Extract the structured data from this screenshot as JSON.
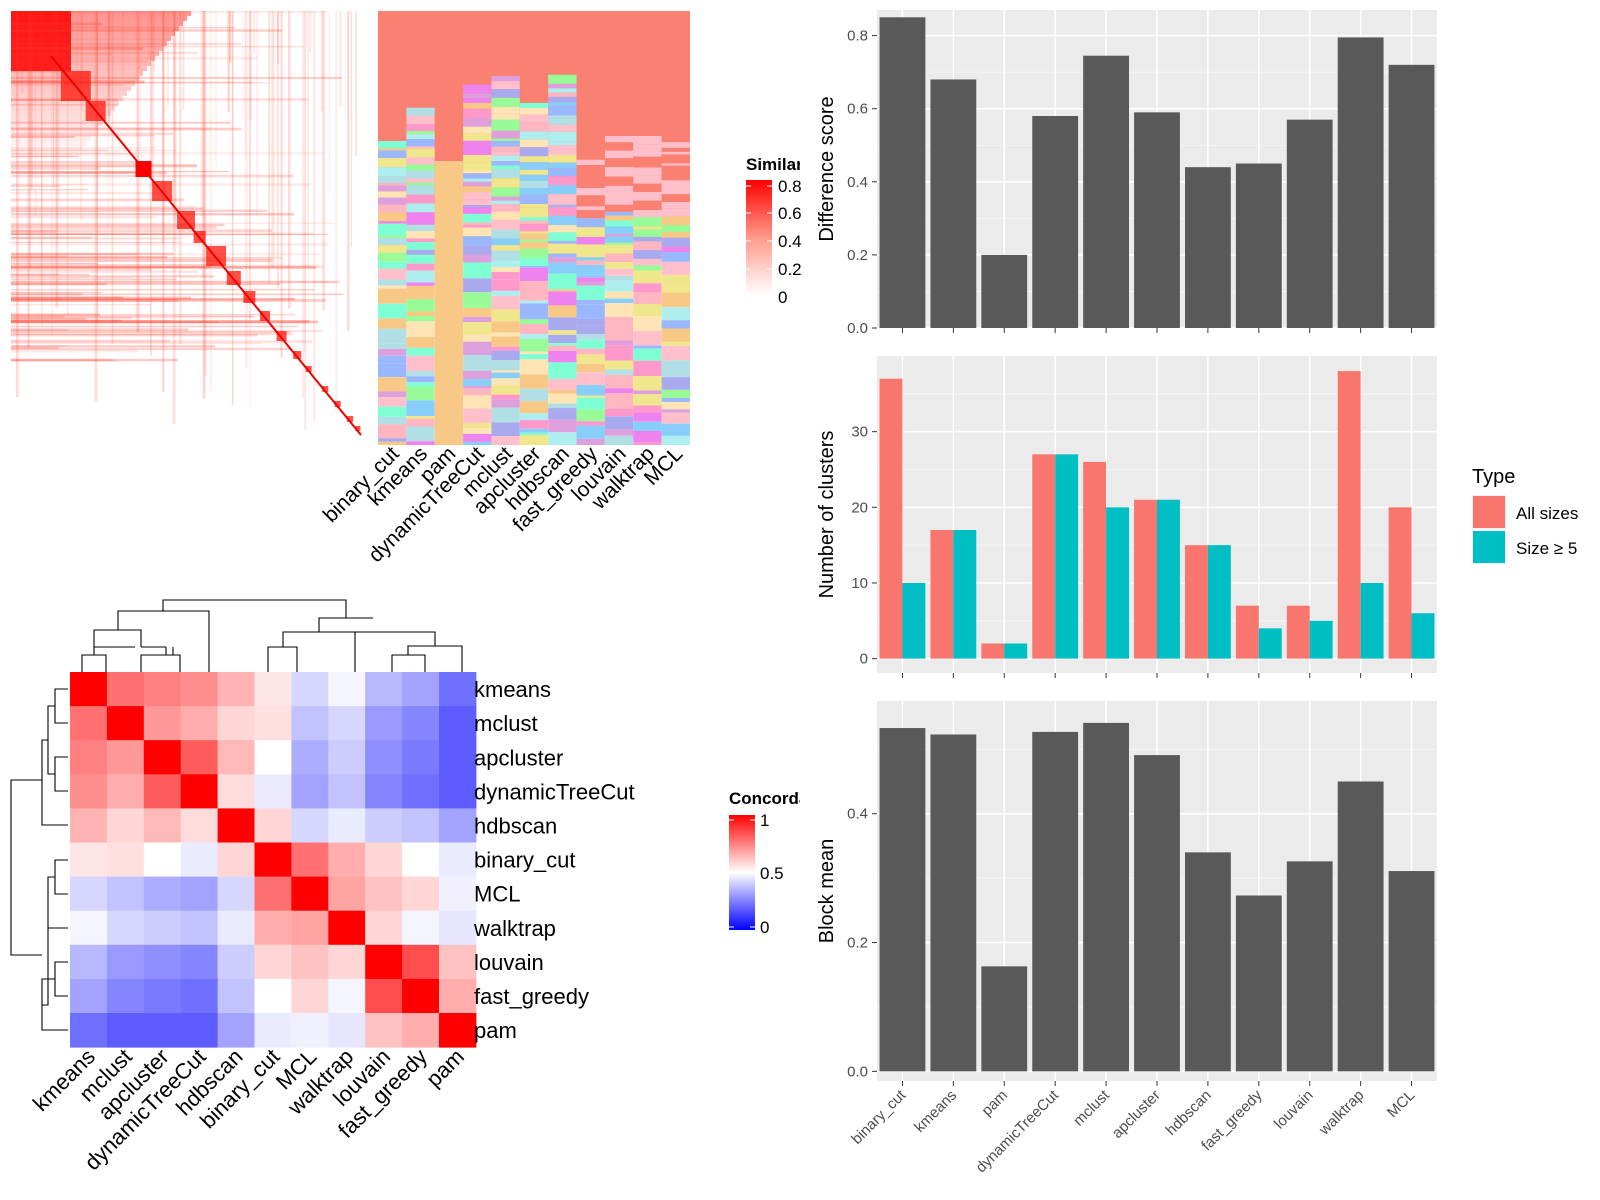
{
  "methods_cols": [
    "binary_cut",
    "kmeans",
    "pam",
    "dynamicTreeCut",
    "mclust",
    "apcluster",
    "hdbscan",
    "fast_greedy",
    "louvain",
    "walktrap",
    "MCL"
  ],
  "legend_top": {
    "title": "Similarity",
    "ticks": [
      "0.8",
      "0.6",
      "0.4",
      "0.2",
      "0"
    ]
  },
  "concordance": {
    "rows": [
      "kmeans",
      "mclust",
      "apcluster",
      "dynamicTreeCut",
      "hdbscan",
      "binary_cut",
      "MCL",
      "walktrap",
      "louvain",
      "fast_greedy",
      "pam"
    ],
    "matrix": [
      [
        1.0,
        0.78,
        0.75,
        0.72,
        0.65,
        0.55,
        0.42,
        0.48,
        0.36,
        0.32,
        0.22
      ],
      [
        0.78,
        1.0,
        0.7,
        0.66,
        0.58,
        0.56,
        0.38,
        0.42,
        0.3,
        0.26,
        0.18
      ],
      [
        0.75,
        0.7,
        1.0,
        0.82,
        0.64,
        0.5,
        0.34,
        0.4,
        0.28,
        0.24,
        0.18
      ],
      [
        0.72,
        0.66,
        0.82,
        1.0,
        0.57,
        0.46,
        0.32,
        0.38,
        0.26,
        0.22,
        0.18
      ],
      [
        0.65,
        0.58,
        0.64,
        0.57,
        1.0,
        0.58,
        0.42,
        0.46,
        0.4,
        0.38,
        0.32
      ],
      [
        0.55,
        0.56,
        0.5,
        0.46,
        0.58,
        1.0,
        0.78,
        0.66,
        0.58,
        0.5,
        0.46
      ],
      [
        0.42,
        0.38,
        0.34,
        0.32,
        0.42,
        0.78,
        1.0,
        0.68,
        0.62,
        0.58,
        0.47
      ],
      [
        0.48,
        0.42,
        0.4,
        0.38,
        0.46,
        0.66,
        0.68,
        1.0,
        0.58,
        0.48,
        0.45
      ],
      [
        0.36,
        0.3,
        0.28,
        0.26,
        0.4,
        0.58,
        0.62,
        0.58,
        1.0,
        0.85,
        0.62
      ],
      [
        0.32,
        0.26,
        0.24,
        0.22,
        0.38,
        0.5,
        0.58,
        0.48,
        0.85,
        1.0,
        0.66
      ],
      [
        0.22,
        0.18,
        0.18,
        0.18,
        0.32,
        0.46,
        0.47,
        0.45,
        0.62,
        0.66,
        1.0
      ]
    ]
  },
  "legend_mid": {
    "title": "Concordance",
    "ticks": [
      "1",
      "0.5",
      "0"
    ]
  },
  "chart_data": [
    {
      "type": "bar",
      "categories": [
        "binary_cut",
        "kmeans",
        "pam",
        "dynamicTreeCut",
        "mclust",
        "apcluster",
        "hdbscan",
        "fast_greedy",
        "louvain",
        "walktrap",
        "MCL"
      ],
      "values": [
        0.85,
        0.68,
        0.2,
        0.58,
        0.745,
        0.59,
        0.44,
        0.45,
        0.57,
        0.795,
        0.72
      ],
      "ylabel": "Difference score",
      "yticks": [
        "0.0",
        "0.2",
        "0.4",
        "0.6",
        "0.8"
      ],
      "ylim": [
        0,
        0.87
      ]
    },
    {
      "type": "bar",
      "categories": [
        "binary_cut",
        "kmeans",
        "pam",
        "dynamicTreeCut",
        "mclust",
        "apcluster",
        "hdbscan",
        "fast_greedy",
        "louvain",
        "walktrap",
        "MCL"
      ],
      "series": [
        {
          "name": "All sizes",
          "color": "#f8766d",
          "values": [
            37,
            17,
            2,
            27,
            26,
            21,
            15,
            7,
            7,
            38,
            20
          ]
        },
        {
          "name": "Size ≥ 5",
          "color": "#00bfc4",
          "values": [
            10,
            17,
            2,
            27,
            20,
            21,
            15,
            4,
            5,
            10,
            6
          ]
        }
      ],
      "ylabel": "Number of clusters",
      "yticks": [
        "0",
        "10",
        "20",
        "30"
      ],
      "ylim": [
        -1.9,
        40
      ],
      "legend_title": "Type",
      "legend_position": "right"
    },
    {
      "type": "bar",
      "categories": [
        "binary_cut",
        "kmeans",
        "pam",
        "dynamicTreeCut",
        "mclust",
        "apcluster",
        "hdbscan",
        "fast_greedy",
        "louvain",
        "walktrap",
        "MCL"
      ],
      "values": [
        0.533,
        0.523,
        0.163,
        0.527,
        0.541,
        0.491,
        0.34,
        0.273,
        0.326,
        0.45,
        0.311
      ],
      "ylabel": "Block mean",
      "yticks": [
        "0.0",
        "0.2",
        "0.4"
      ],
      "ylim": [
        -0.015,
        0.575
      ]
    }
  ]
}
